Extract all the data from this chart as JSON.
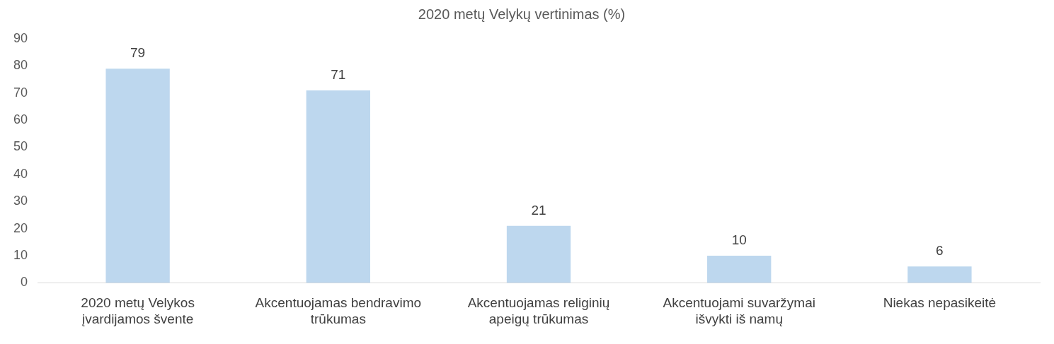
{
  "chart_data": {
    "type": "bar",
    "title": "2020 metų Velykų vertinimas (%)",
    "categories": [
      "2020 metų Velykos įvardijamos švente",
      "Akcentuojamas bendravimo trūkumas",
      "Akcentuojamas religinių apeigų trūkumas",
      "Akcentuojami suvaržymai išvykti iš namų",
      "Niekas nepasikeitė"
    ],
    "values": [
      79,
      71,
      21,
      10,
      6
    ],
    "color": "#bdd7ee",
    "ylim": [
      0,
      90
    ],
    "yticks": [
      0,
      10,
      20,
      30,
      40,
      50,
      60,
      70,
      80,
      90
    ],
    "grid": false,
    "legend": false,
    "data_labels": true
  }
}
